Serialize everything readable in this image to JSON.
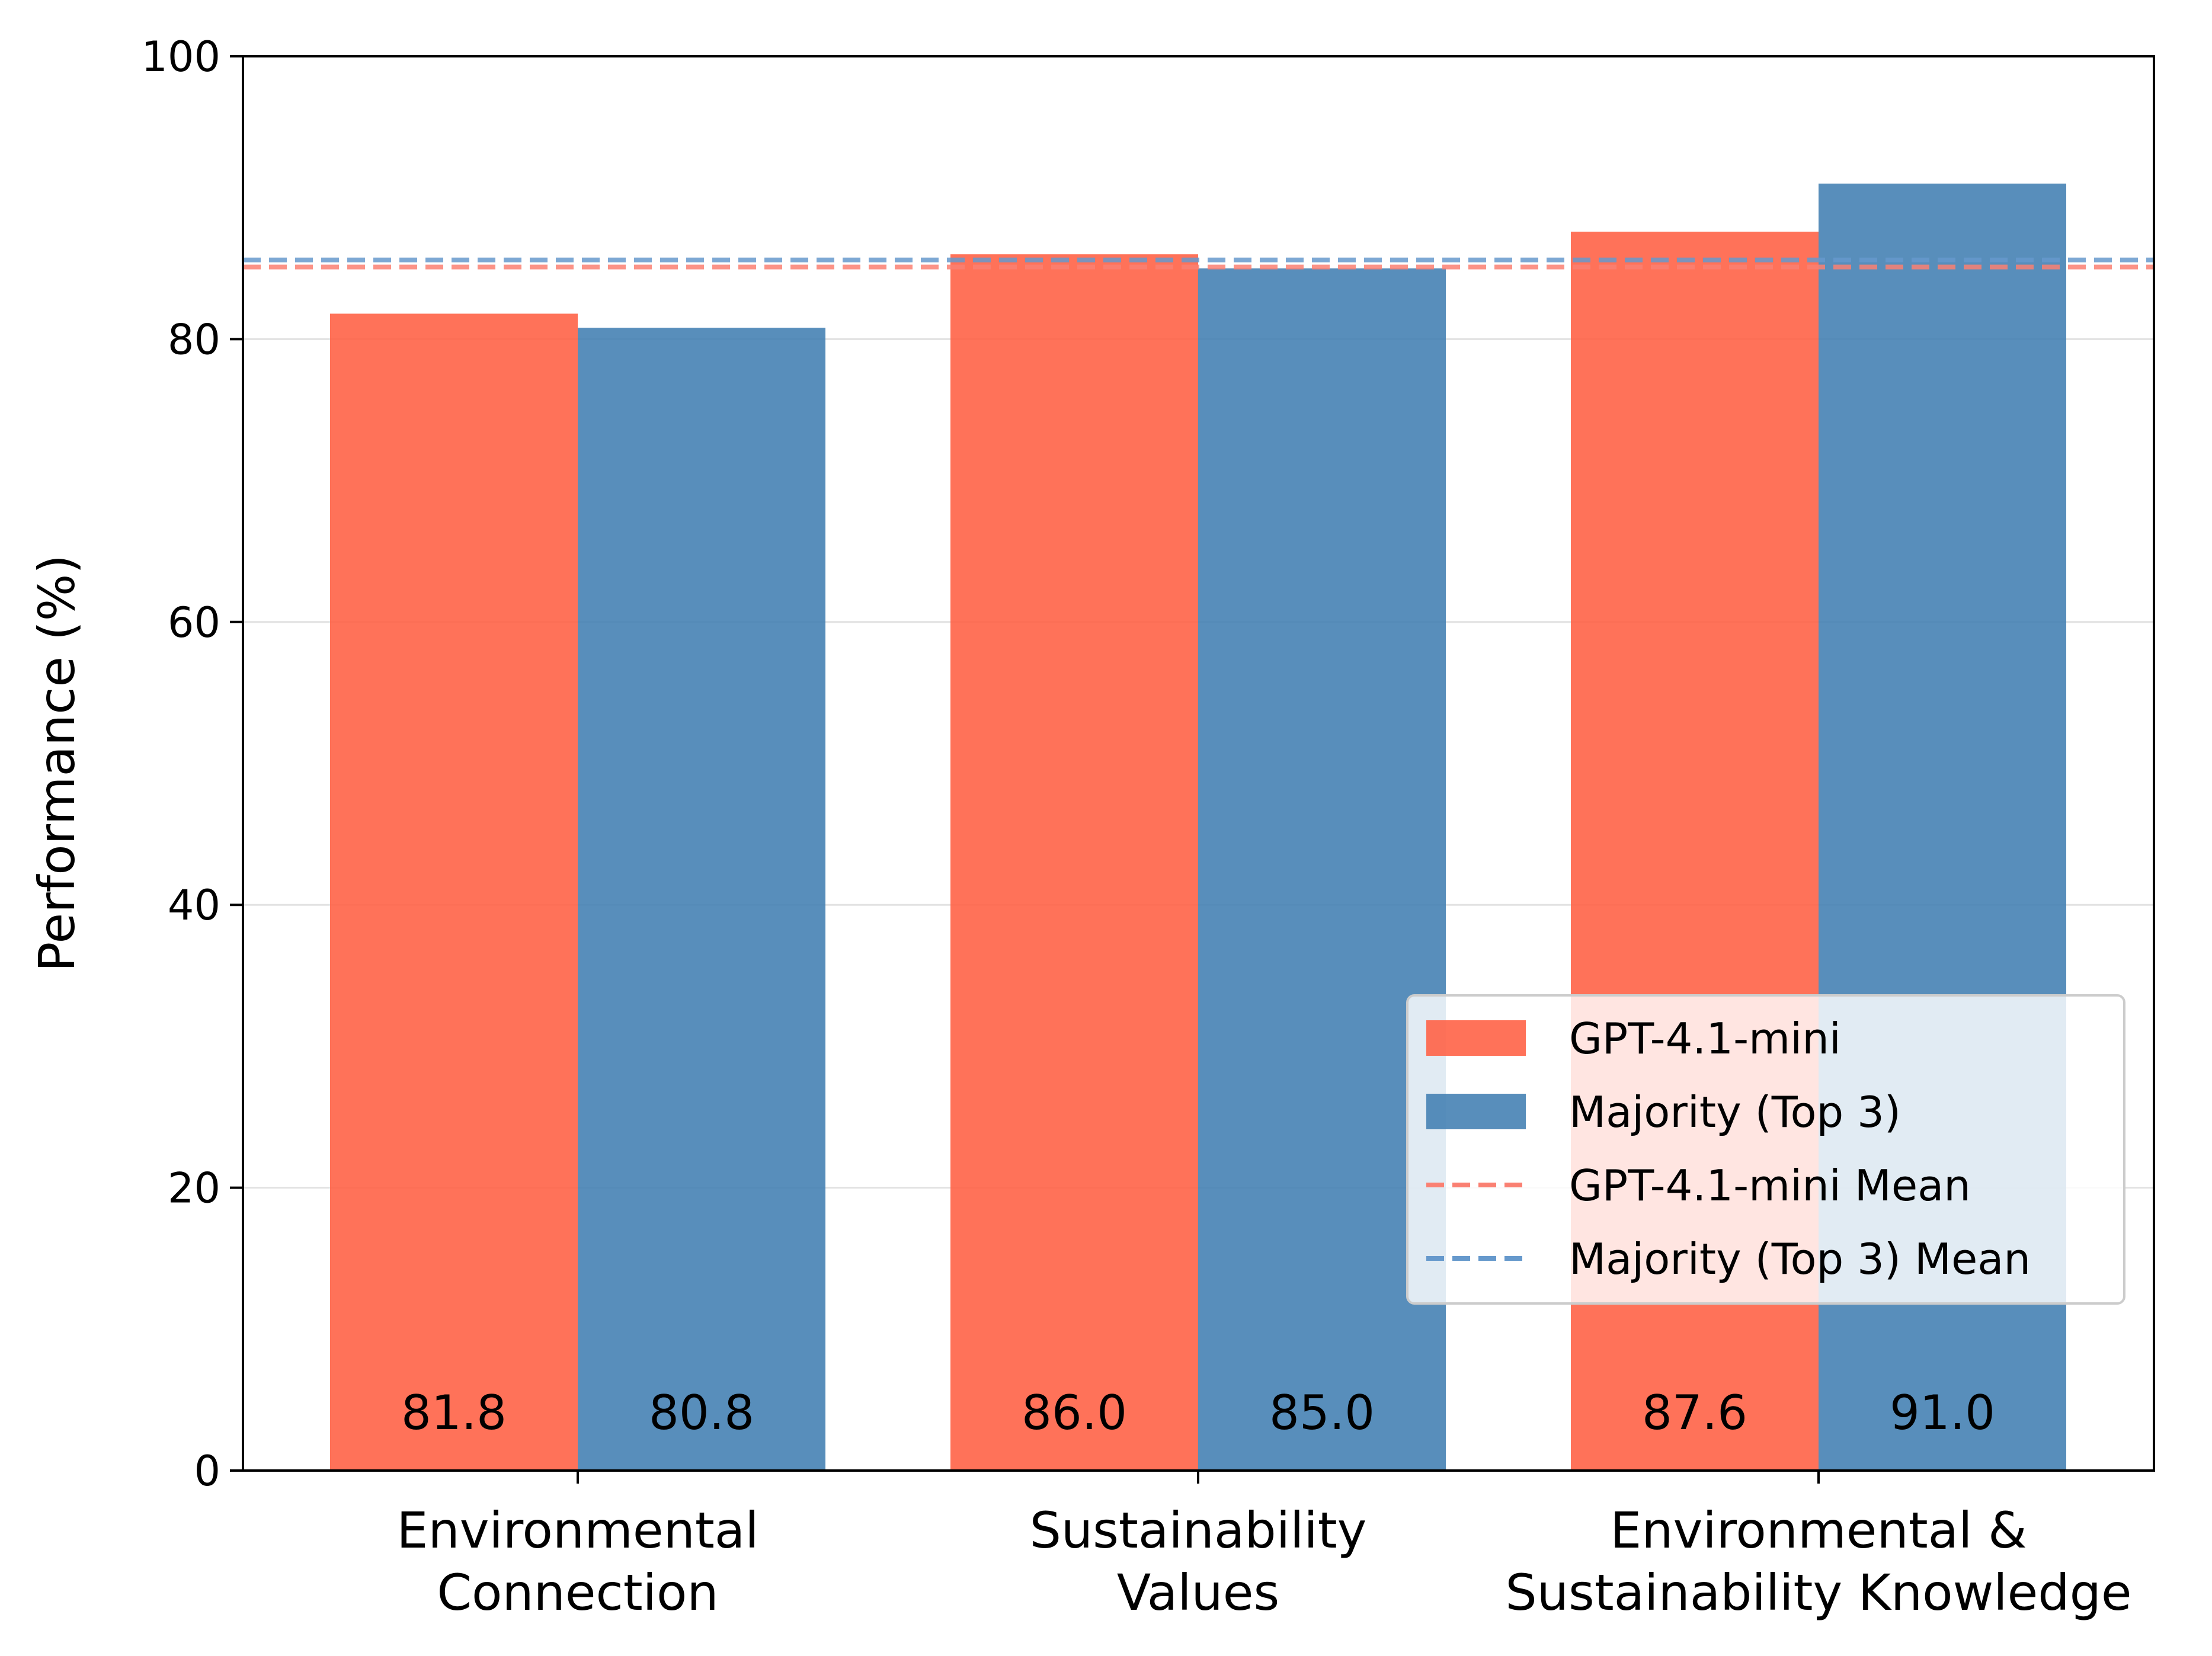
{
  "chart_data": {
    "type": "bar",
    "categories": [
      [
        "Environmental",
        "Connection"
      ],
      [
        "Sustainability",
        "Values"
      ],
      [
        "Environmental &",
        "Sustainability Knowledge"
      ]
    ],
    "series": [
      {
        "name": "GPT-4.1-mini",
        "values": [
          81.8,
          86.0,
          87.6
        ],
        "labels": [
          "81.8",
          "86.0",
          "87.6"
        ],
        "color": "#ff6347"
      },
      {
        "name": "Majority (Top 3)",
        "values": [
          80.8,
          85.0,
          91.0
        ],
        "labels": [
          "80.8",
          "85.0",
          "91.0"
        ],
        "color": "#4682b4"
      }
    ],
    "reference_lines": [
      {
        "name": "GPT-4.1-mini Mean",
        "value": 85.1,
        "color": "#fa8072",
        "style": "dashed"
      },
      {
        "name": "Majority (Top 3) Mean",
        "value": 85.6,
        "color": "#6699cc",
        "style": "dashed"
      }
    ],
    "xlabel": "",
    "ylabel": "Performance (%)",
    "ylim": [
      0,
      100
    ],
    "yticks": [
      0,
      20,
      40,
      60,
      80,
      100
    ],
    "ytick_labels": [
      "0",
      "20",
      "40",
      "60",
      "80",
      "100"
    ],
    "grid": "horizontal",
    "legend_position": "lower-right"
  }
}
